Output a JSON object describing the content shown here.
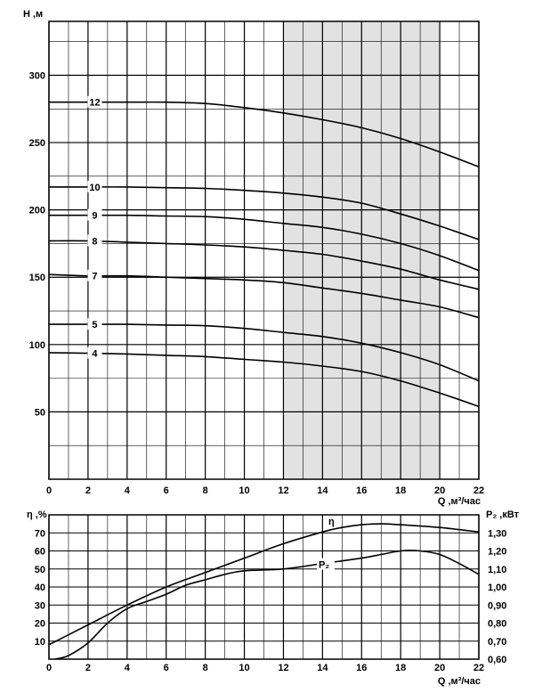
{
  "chart_data": [
    {
      "type": "line",
      "ylabel": "H ,м",
      "xlabel": "Q ,м³/час",
      "xlim": [
        0,
        22
      ],
      "ylim": [
        0,
        340
      ],
      "x_ticks": [
        "0",
        "2",
        "4",
        "6",
        "8",
        "10",
        "12",
        "14",
        "16",
        "18",
        "20",
        "22"
      ],
      "y_ticks": [
        "50",
        "100",
        "150",
        "200",
        "250",
        "300"
      ],
      "x_tick_values": [
        0,
        2,
        4,
        6,
        8,
        10,
        12,
        14,
        16,
        18,
        20,
        22
      ],
      "y_tick_values": [
        50,
        100,
        150,
        200,
        250,
        300
      ],
      "grid": true,
      "highlight_band": {
        "x_from": 12,
        "x_to": 20,
        "color": "#e2e2e2"
      },
      "series": [
        {
          "name": "12",
          "points": [
            [
              0,
              280
            ],
            [
              2,
              280
            ],
            [
              4,
              280
            ],
            [
              6,
              280
            ],
            [
              8,
              279
            ],
            [
              10,
              276
            ],
            [
              12,
              272
            ],
            [
              14,
              267
            ],
            [
              16,
              261
            ],
            [
              18,
              253
            ],
            [
              20,
              243
            ],
            [
              22,
              232
            ]
          ]
        },
        {
          "name": "10",
          "points": [
            [
              0,
              217
            ],
            [
              2,
              217
            ],
            [
              4,
              217
            ],
            [
              6,
              216.5
            ],
            [
              8,
              216
            ],
            [
              10,
              214.5
            ],
            [
              12,
              212.5
            ],
            [
              14,
              209.5
            ],
            [
              16,
              205
            ],
            [
              18,
              197
            ],
            [
              20,
              188
            ],
            [
              22,
              178
            ]
          ]
        },
        {
          "name": "9",
          "points": [
            [
              0,
              196
            ],
            [
              2,
              196
            ],
            [
              4,
              196
            ],
            [
              6,
              195.5
            ],
            [
              8,
              195
            ],
            [
              10,
              193
            ],
            [
              12,
              190
            ],
            [
              14,
              187
            ],
            [
              16,
              182
            ],
            [
              18,
              175
            ],
            [
              20,
              166
            ],
            [
              22,
              155
            ]
          ]
        },
        {
          "name": "8",
          "points": [
            [
              0,
              177
            ],
            [
              2,
              177
            ],
            [
              4,
              176
            ],
            [
              6,
              175
            ],
            [
              8,
              174
            ],
            [
              10,
              172.5
            ],
            [
              12,
              170
            ],
            [
              14,
              167
            ],
            [
              16,
              162
            ],
            [
              18,
              156
            ],
            [
              20,
              148
            ],
            [
              22,
              141
            ]
          ]
        },
        {
          "name": "7",
          "points": [
            [
              0,
              152
            ],
            [
              2,
              151
            ],
            [
              4,
              151
            ],
            [
              6,
              150
            ],
            [
              8,
              149
            ],
            [
              10,
              148
            ],
            [
              12,
              146
            ],
            [
              14,
              142
            ],
            [
              16,
              138
            ],
            [
              18,
              133
            ],
            [
              20,
              128
            ],
            [
              22,
              120
            ]
          ]
        },
        {
          "name": "5",
          "points": [
            [
              0,
              115
            ],
            [
              2,
              115
            ],
            [
              4,
              115
            ],
            [
              6,
              114.5
            ],
            [
              8,
              114
            ],
            [
              10,
              112
            ],
            [
              12,
              109
            ],
            [
              14,
              106
            ],
            [
              16,
              101
            ],
            [
              18,
              94
            ],
            [
              20,
              85
            ],
            [
              22,
              73
            ]
          ]
        },
        {
          "name": "4",
          "points": [
            [
              0,
              94
            ],
            [
              2,
              93.5
            ],
            [
              4,
              93
            ],
            [
              6,
              92
            ],
            [
              8,
              91
            ],
            [
              10,
              89
            ],
            [
              12,
              87
            ],
            [
              14,
              84
            ],
            [
              16,
              80
            ],
            [
              18,
              73
            ],
            [
              20,
              64
            ],
            [
              22,
              54
            ]
          ]
        }
      ]
    },
    {
      "type": "line",
      "ylabel": "η ,%",
      "ylabel_right": "P₂ ,кВт",
      "xlabel": "Q ,м³/час",
      "xlim": [
        0,
        22
      ],
      "ylim": [
        0,
        80
      ],
      "ylim_right": [
        0.6,
        1.4
      ],
      "x_ticks": [
        "0",
        "2",
        "4",
        "6",
        "8",
        "10",
        "12",
        "14",
        "16",
        "18",
        "20",
        "22"
      ],
      "y_ticks": [
        "10",
        "20",
        "30",
        "40",
        "50",
        "60",
        "70"
      ],
      "y_ticks_right": [
        "0,60",
        "0,70",
        "0,80",
        "0,90",
        "1,00",
        "1,10",
        "1,20",
        "1,30"
      ],
      "x_tick_values": [
        0,
        2,
        4,
        6,
        8,
        10,
        12,
        14,
        16,
        18,
        20,
        22
      ],
      "y_tick_values": [
        10,
        20,
        30,
        40,
        50,
        60,
        70
      ],
      "y_tick_values_right": [
        0.6,
        0.7,
        0.8,
        0.9,
        1.0,
        1.1,
        1.2,
        1.3
      ],
      "grid": true,
      "series": [
        {
          "name": "η",
          "axis": "left",
          "points": [
            [
              0,
              8
            ],
            [
              2,
              19
            ],
            [
              4,
              30
            ],
            [
              6,
              40
            ],
            [
              8,
              48
            ],
            [
              10,
              56
            ],
            [
              12,
              64
            ],
            [
              14,
              70.5
            ],
            [
              15,
              73
            ],
            [
              16,
              74.5
            ],
            [
              17,
              75
            ],
            [
              18,
              74.5
            ],
            [
              20,
              73
            ],
            [
              22,
              70.5
            ]
          ]
        },
        {
          "name": "P₂",
          "axis": "right",
          "points": [
            [
              0.3,
              0.6
            ],
            [
              1,
              0.62
            ],
            [
              2,
              0.69
            ],
            [
              3,
              0.8
            ],
            [
              4,
              0.88
            ],
            [
              5,
              0.92
            ],
            [
              6,
              0.96
            ],
            [
              7,
              1.01
            ],
            [
              8,
              1.04
            ],
            [
              9,
              1.07
            ],
            [
              10,
              1.09
            ],
            [
              12,
              1.1
            ],
            [
              14,
              1.13
            ],
            [
              16,
              1.16
            ],
            [
              17,
              1.18
            ],
            [
              18,
              1.2
            ],
            [
              19,
              1.2
            ],
            [
              20,
              1.18
            ],
            [
              21,
              1.13
            ],
            [
              22,
              1.07
            ]
          ]
        }
      ]
    }
  ]
}
